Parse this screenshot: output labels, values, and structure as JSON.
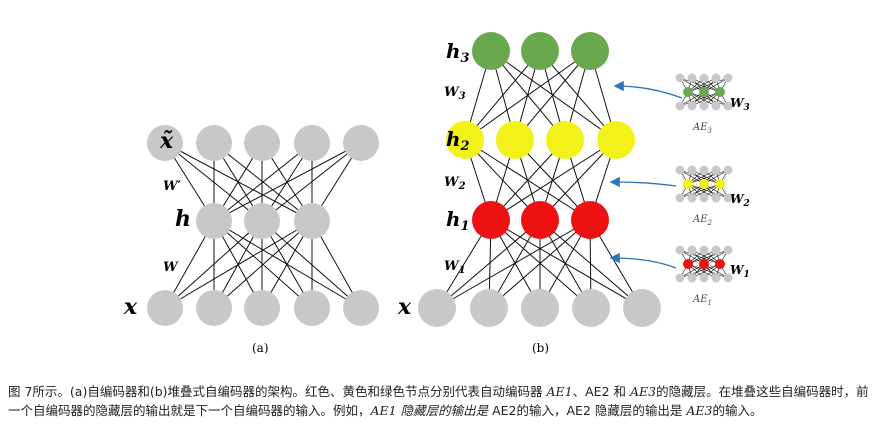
{
  "figure": {
    "panel_a": {
      "label": "(a)",
      "layer_labels": {
        "x_tilde": "x̃",
        "h": "h",
        "x": "x"
      },
      "weight_labels": {
        "w_prime": "W′",
        "w": "W"
      }
    },
    "panel_b": {
      "label": "(b)",
      "layer_labels": {
        "h3": "h",
        "h3_sub": "3",
        "h2": "h",
        "h2_sub": "2",
        "h1": "h",
        "h1_sub": "1",
        "x": "x"
      },
      "weight_labels": {
        "w3": "W",
        "w3_sub": "3",
        "w2": "W",
        "w2_sub": "2",
        "w1": "W",
        "w1_sub": "1"
      },
      "mini_ae": [
        {
          "ae": "AE",
          "sub": "3",
          "w": "W",
          "w_sub": "3"
        },
        {
          "ae": "AE",
          "sub": "2",
          "w": "W",
          "w_sub": "2"
        },
        {
          "ae": "AE",
          "sub": "1",
          "w": "W",
          "w_sub": "1"
        }
      ]
    },
    "colors": {
      "gray": "#c8c8c8",
      "green": "#6aa84f",
      "yellow": "#f2f21a",
      "red": "#ee1111",
      "arrow": "#2e75b6"
    }
  },
  "caption": {
    "p1": "图 7所示。(a)自编码器和(b)堆叠式自编码器的架构。红色、黄色和绿色节点分别代表自动编码器 ",
    "ae1": "AE1",
    "p2": "、AE2 和 ",
    "ae3": "AE3",
    "p3": "的隐藏层。在堆叠这些自编码器时，前一个自编码器的隐藏层的输出就是下一个自编码器的输入。例如，",
    "ae1_hidden": "AE1 隐藏层的输出是",
    "p4": " AE2的输入，",
    "ae2": "AE2",
    "p5": " 隐藏层的输出是 ",
    "ae3b": "AE3",
    "p6": "的输入。"
  }
}
